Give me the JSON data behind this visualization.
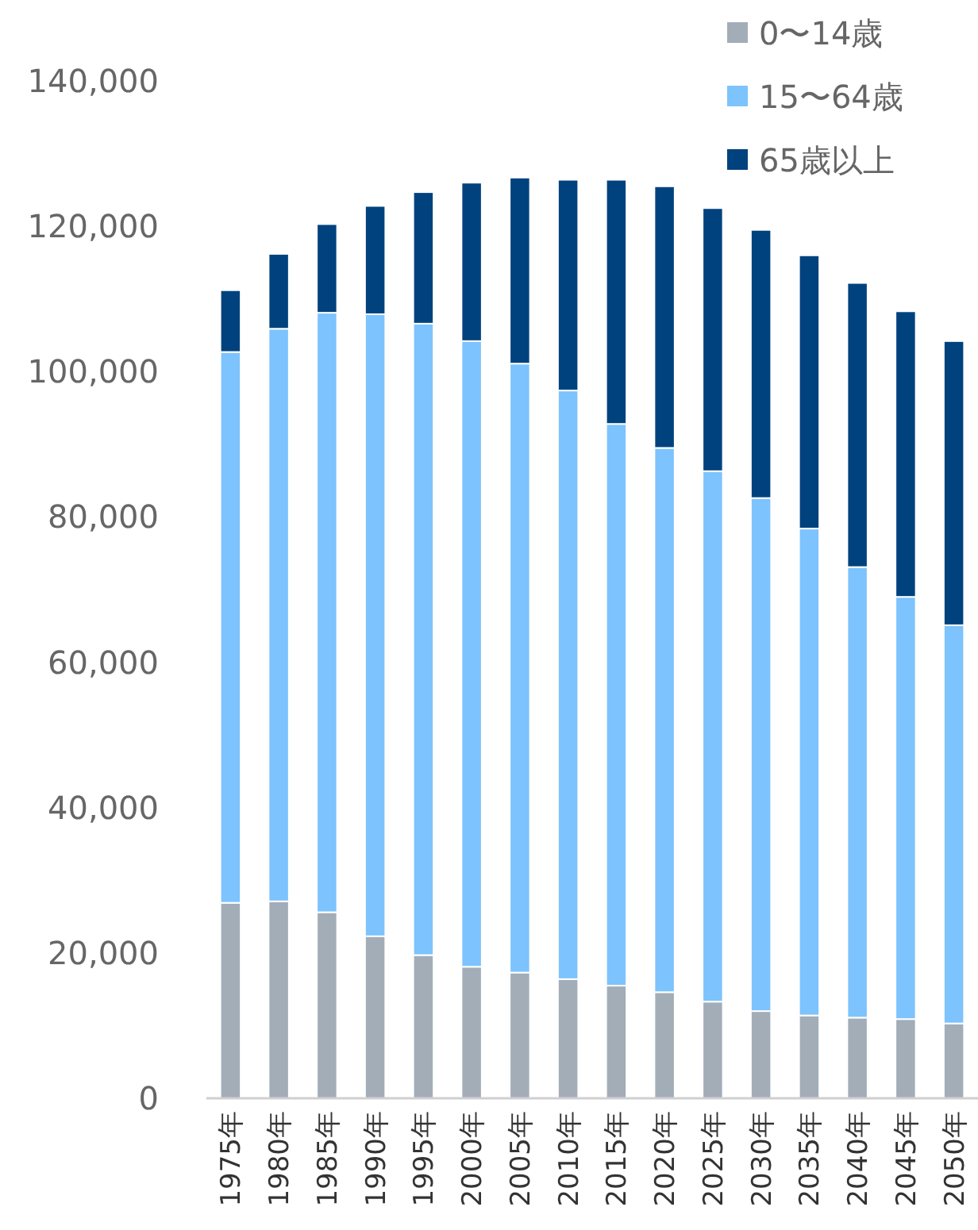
{
  "chart_data": {
    "type": "bar",
    "stacked": true,
    "legend": "top right",
    "categories": [
      "1975年",
      "1980年",
      "1985年",
      "1990年",
      "1995年",
      "2000年",
      "2005年",
      "2010年",
      "2015年",
      "2020年",
      "2025年",
      "2030年",
      "2035年",
      "2040年",
      "2045年",
      "2050年"
    ],
    "ylim": [
      0,
      140000
    ],
    "yticks": [
      0,
      {
        "value": 20000,
        "label": "20,000"
      },
      {
        "value": 40000,
        "label": "40,000"
      },
      {
        "value": 60000,
        "label": "60,000"
      },
      {
        "value": 80000,
        "label": "80,000"
      },
      {
        "value": 100000,
        "label": "100,000"
      },
      {
        "value": 120000,
        "label": "120,000"
      },
      {
        "value": 140000,
        "label": "140,000"
      }
    ],
    "series": [
      {
        "name": "0〜14歳",
        "color": "#a2adb8",
        "values": [
          26900,
          27100,
          25600,
          22300,
          19700,
          18100,
          17300,
          16400,
          15500,
          14600,
          13300,
          12000,
          11400,
          11100,
          10900,
          10300
        ]
      },
      {
        "name": "15〜64歳",
        "color": "#7dc3fd",
        "values": [
          75800,
          78800,
          82500,
          85600,
          86900,
          86100,
          83800,
          81000,
          77300,
          74900,
          73000,
          70600,
          67000,
          62000,
          58100,
          54800
        ]
      },
      {
        "name": "65歳以上",
        "color": "#00427e",
        "values": [
          8500,
          10300,
          12200,
          14900,
          18100,
          21800,
          25600,
          29000,
          33600,
          36000,
          36200,
          36900,
          37600,
          39100,
          39300,
          39100
        ]
      }
    ]
  }
}
